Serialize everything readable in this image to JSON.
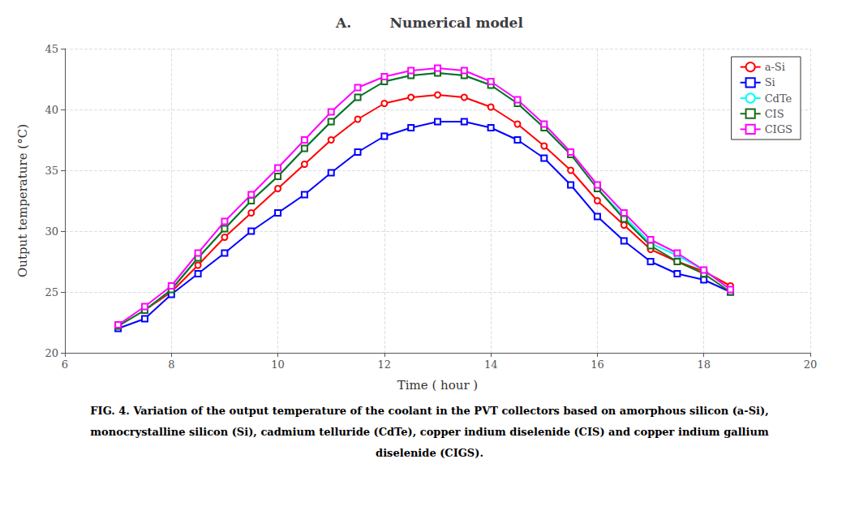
{
  "chart_data": {
    "type": "line",
    "title": "A.        Numerical model",
    "xlabel": "Time ( hour )",
    "ylabel": "Output temperature (°C)",
    "xlim": [
      6,
      20
    ],
    "ylim": [
      20,
      45
    ],
    "xticks": [
      6,
      8,
      10,
      12,
      14,
      16,
      18,
      20
    ],
    "yticks": [
      20,
      25,
      30,
      35,
      40,
      45
    ],
    "grid": true,
    "legend": "upper right",
    "x": [
      7,
      7.5,
      8,
      8.5,
      9,
      9.5,
      10,
      10.5,
      11,
      11.5,
      12,
      12.5,
      13,
      13.5,
      14,
      14.5,
      15,
      15.5,
      16,
      16.5,
      17,
      17.5,
      18,
      18.5
    ],
    "series": [
      {
        "name": "a-Si",
        "color": "#ff0000",
        "marker": "circle",
        "values": [
          22.2,
          23.5,
          25.0,
          27.2,
          29.5,
          31.5,
          33.5,
          35.5,
          37.5,
          39.2,
          40.5,
          41.0,
          41.2,
          41.0,
          40.2,
          38.8,
          37.0,
          35.0,
          32.5,
          30.5,
          28.5,
          27.5,
          26.7,
          25.5
        ]
      },
      {
        "name": "Si",
        "color": "#0000ff",
        "marker": "square",
        "values": [
          22.0,
          22.8,
          24.8,
          26.5,
          28.2,
          30.0,
          31.5,
          33.0,
          34.8,
          36.5,
          37.8,
          38.5,
          39.0,
          39.0,
          38.5,
          37.5,
          36.0,
          33.8,
          31.2,
          29.2,
          27.5,
          26.5,
          26.0,
          25.0
        ]
      },
      {
        "name": "CdTe",
        "color": "#00ffff",
        "marker": "circle",
        "values": [
          22.2,
          23.5,
          25.2,
          27.8,
          30.2,
          32.5,
          34.5,
          36.8,
          39.0,
          41.0,
          42.3,
          42.8,
          43.0,
          42.8,
          42.0,
          40.5,
          38.5,
          36.3,
          33.5,
          31.2,
          29.0,
          28.0,
          26.8,
          25.2
        ]
      },
      {
        "name": "CIS",
        "color": "#1a6b1a",
        "marker": "square",
        "values": [
          22.2,
          23.5,
          25.2,
          27.8,
          30.2,
          32.5,
          34.5,
          36.8,
          39.0,
          41.0,
          42.3,
          42.8,
          43.0,
          42.8,
          42.0,
          40.5,
          38.5,
          36.3,
          33.5,
          31.0,
          28.8,
          27.5,
          26.5,
          25.0
        ]
      },
      {
        "name": "CIGS",
        "color": "#ff00ff",
        "marker": "square",
        "values": [
          22.3,
          23.8,
          25.5,
          28.2,
          30.8,
          33.0,
          35.2,
          37.5,
          39.8,
          41.8,
          42.7,
          43.2,
          43.4,
          43.2,
          42.3,
          40.8,
          38.8,
          36.5,
          33.8,
          31.5,
          29.3,
          28.2,
          26.8,
          25.2
        ]
      }
    ],
    "annotations": [
      "FIG. 4. Variation of the output temperature of the coolant in the PVT collectors based on amorphous silicon (a-Si),",
      "monocrystalline silicon (Si), cadmium telluride (CdTe), copper indium diselenide (CIS) and copper indium gallium",
      "diselenide (CIGS)."
    ]
  }
}
